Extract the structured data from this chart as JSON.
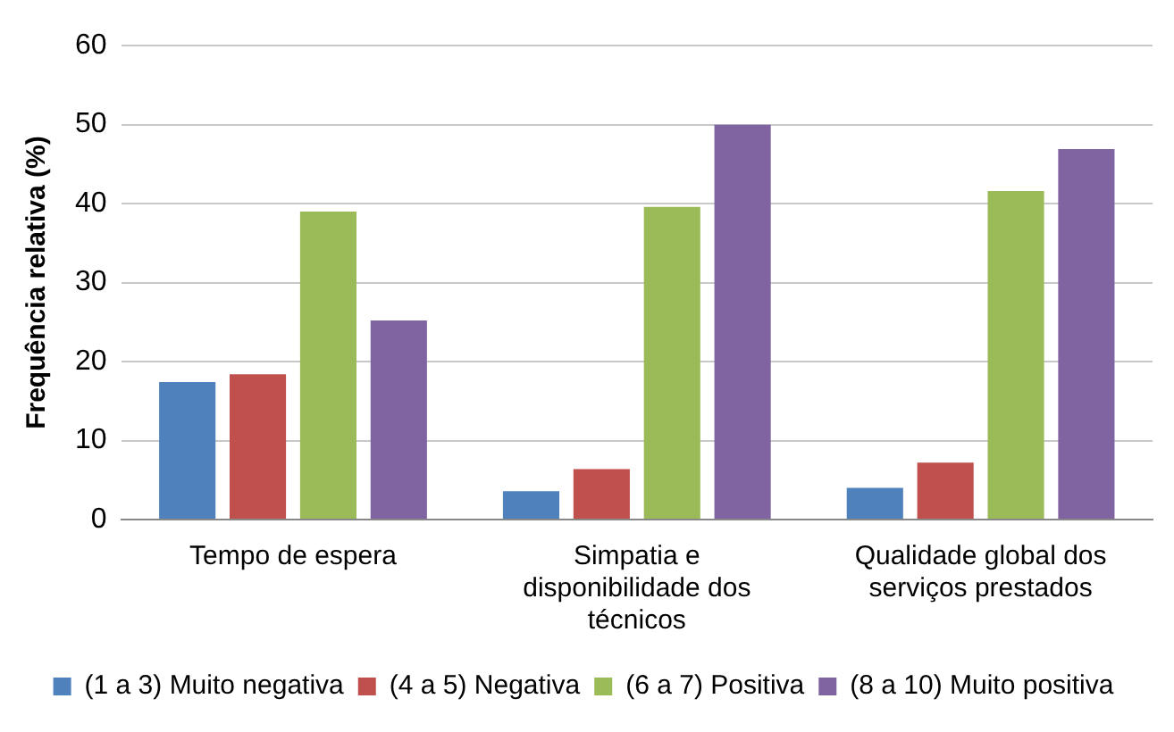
{
  "chart_data": {
    "type": "bar",
    "ylabel": "Frequência relativa (%)",
    "categories": [
      "Tempo de espera",
      "Simpatia e disponibilidade dos técnicos",
      "Qualidade global dos serviços prestados"
    ],
    "series": [
      {
        "name": "(1 a 3) Muito negativa",
        "color": "#4f81bd",
        "values": [
          17.4,
          3.6,
          4.0
        ]
      },
      {
        "name": "(4 a 5) Negativa",
        "color": "#c0504d",
        "values": [
          18.4,
          6.4,
          7.2
        ]
      },
      {
        "name": "(6 a 7) Positiva",
        "color": "#9bbb59",
        "values": [
          39.0,
          39.6,
          41.6
        ]
      },
      {
        "name": "(8 a 10) Muito positiva",
        "color": "#8064a2",
        "values": [
          25.2,
          50.0,
          46.9
        ]
      }
    ],
    "ylim": [
      0,
      60
    ],
    "yticks": [
      0,
      10,
      20,
      30,
      40,
      50,
      60
    ],
    "grid": "y",
    "legend": "bottom"
  }
}
